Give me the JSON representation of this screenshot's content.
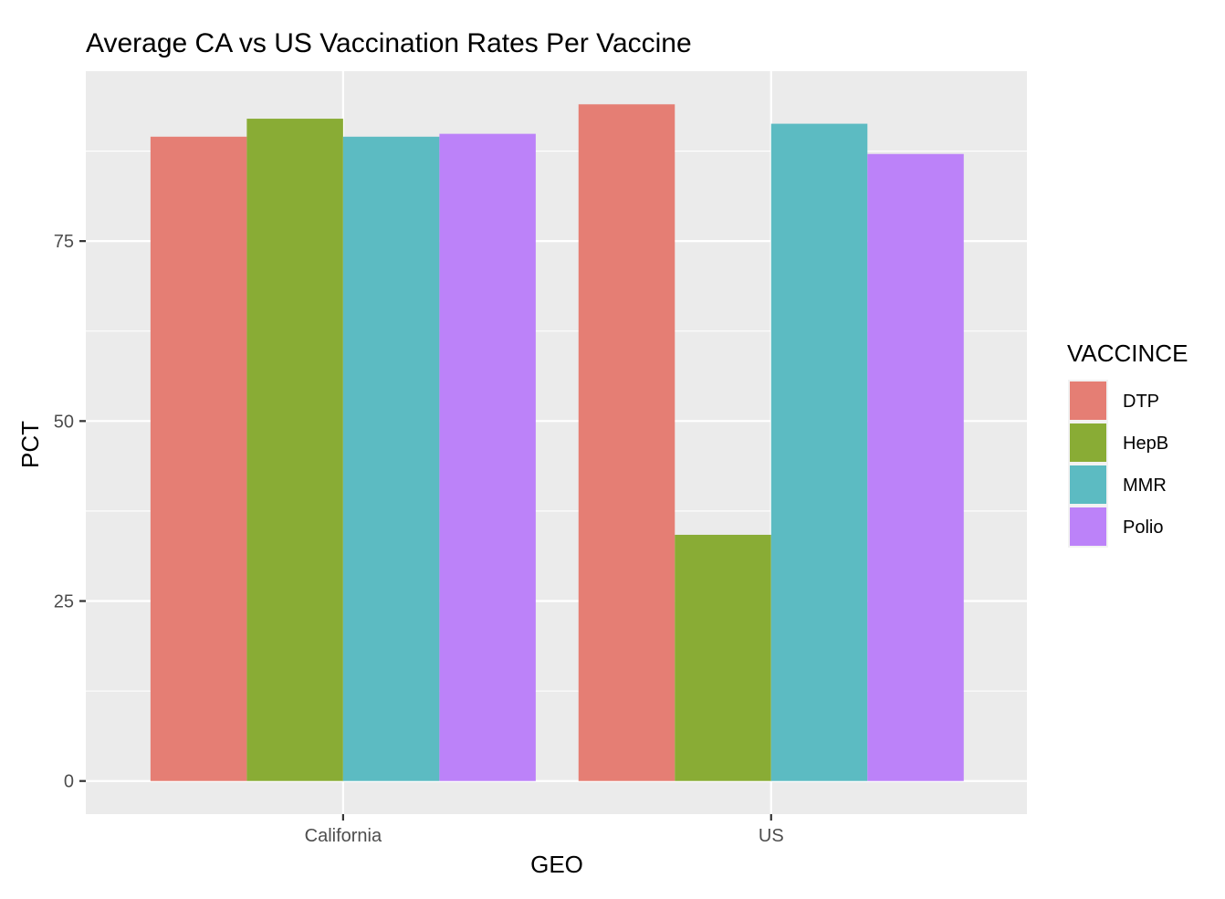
{
  "chart_data": {
    "type": "bar",
    "title": "Average CA vs US Vaccination Rates Per Vaccine",
    "xlabel": "GEO",
    "ylabel": "PCT",
    "categories": [
      "California",
      "US"
    ],
    "series": [
      {
        "name": "DTP",
        "color": "#E57E74",
        "values": [
          89.5,
          94.0
        ]
      },
      {
        "name": "HepB",
        "color": "#89AC35",
        "values": [
          92.0,
          34.2
        ]
      },
      {
        "name": "MMR",
        "color": "#5CBBC2",
        "values": [
          89.5,
          91.3
        ]
      },
      {
        "name": "Polio",
        "color": "#BC82F9",
        "values": [
          89.9,
          87.1
        ]
      }
    ],
    "yticks": [
      0,
      25,
      50,
      75
    ],
    "ylim": [
      -4.6,
      98.6
    ],
    "legend": {
      "title": "VACCINCE",
      "position": "right"
    },
    "grid": true
  }
}
